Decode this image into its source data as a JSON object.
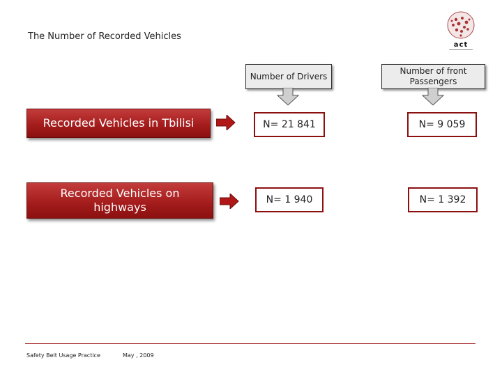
{
  "slide": {
    "title": "The Number of Recorded Vehicles",
    "logo_text": "act"
  },
  "columns": {
    "drivers_header": "Number of Drivers",
    "passengers_header": "Number of front Passengers"
  },
  "rows": [
    {
      "label": "Recorded Vehicles in Tbilisi",
      "drivers": "N= 21 841",
      "passengers": "N= 9 059"
    },
    {
      "label": "Recorded Vehicles on highways",
      "drivers": "N= 1 940",
      "passengers": "N= 1 392"
    }
  ],
  "footer": {
    "left": "Safety Belt Usage  Practice",
    "date": "May , 2009"
  },
  "colors": {
    "accent": "#a51d1d",
    "header_bg": "#ececec"
  }
}
